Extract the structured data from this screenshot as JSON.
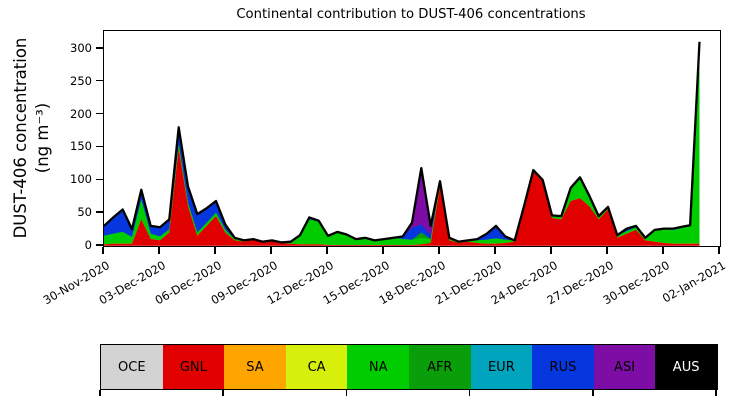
{
  "background": "#ffffff",
  "chart_data": {
    "type": "area",
    "stacked": true,
    "title": "Continental contribution to DUST-406 concentrations",
    "ylabel_line1": "DUST-406 concentration",
    "ylabel_line2": "(ng m⁻³)",
    "y_ticks": [
      0,
      50,
      100,
      150,
      200,
      250,
      300
    ],
    "y_axis_max": 327,
    "x_range_days": [
      0,
      33
    ],
    "x_tick_days": [
      0,
      3,
      6,
      9,
      12,
      15,
      18,
      21,
      24,
      27,
      30,
      33
    ],
    "x_tick_labels": [
      "30-Nov-2020",
      "03-Dec-2020",
      "06-Dec-2020",
      "09-Dec-2020",
      "12-Dec-2020",
      "15-Dec-2020",
      "18-Dec-2020",
      "21-Dec-2020",
      "24-Dec-2020",
      "27-Dec-2020",
      "30-Dec-2020",
      "02-Jan-2021"
    ],
    "grid": false,
    "outline_color": "#000000",
    "x_days": [
      0,
      0.5,
      1,
      1.5,
      2,
      2.5,
      3,
      3.5,
      4,
      4.5,
      5,
      5.5,
      6,
      6.5,
      7,
      7.5,
      8,
      8.5,
      9,
      9.5,
      10,
      10.5,
      11,
      11.5,
      12,
      12.5,
      13,
      13.5,
      14,
      14.5,
      15,
      15.5,
      16,
      16.5,
      17,
      17.5,
      18,
      18.5,
      19,
      19.5,
      20,
      20.5,
      21,
      21.5,
      22,
      22.5,
      23,
      23.5,
      24,
      24.5,
      25,
      25.5,
      26,
      26.5,
      27,
      27.5,
      28,
      28.5,
      29,
      29.5,
      30,
      30.5,
      31,
      31.4,
      31.9
    ],
    "series": [
      {
        "name": "OCE",
        "color": "#d3d3d3",
        "values": [
          0.5
        ]
      },
      {
        "name": "GNL",
        "color": "#e00000",
        "values": [
          2,
          3,
          3,
          3,
          40,
          10,
          8,
          20,
          148,
          60,
          15,
          30,
          45,
          20,
          8,
          6,
          9,
          5,
          7,
          4,
          3,
          2,
          2,
          2,
          1,
          1,
          1,
          1,
          1,
          1,
          1,
          1,
          1,
          1,
          2,
          4,
          90,
          8,
          4,
          6,
          4,
          3,
          3,
          4,
          6,
          58,
          112,
          98,
          42,
          40,
          68,
          72,
          60,
          40,
          55,
          12,
          18,
          24,
          8,
          6,
          4,
          3,
          3,
          3,
          3
        ]
      },
      {
        "name": "SA",
        "color": "#ffa500",
        "values": [
          0
        ]
      },
      {
        "name": "CA",
        "color": "#d6ef0b",
        "values": [
          0
        ]
      },
      {
        "name": "NA",
        "color": "#00cc00",
        "values": [
          13,
          15,
          18,
          10,
          30,
          8,
          6,
          5,
          6,
          5,
          5,
          5,
          5,
          4,
          2,
          1,
          1,
          1,
          1,
          1,
          3,
          14,
          38,
          34,
          14,
          20,
          16,
          9,
          11,
          7,
          9,
          11,
          9,
          8,
          10,
          6,
          4,
          3,
          2,
          2,
          4,
          6,
          8,
          5,
          2,
          2,
          2,
          2,
          2,
          3,
          20,
          32,
          14,
          5,
          4,
          4,
          4,
          4,
          4,
          18,
          22,
          20,
          24,
          26,
          295
        ]
      },
      {
        "name": "AFR",
        "color": "#0a9e0a",
        "values": [
          0,
          0,
          0,
          0,
          0,
          0,
          0,
          0,
          0,
          0,
          0,
          0,
          0,
          0,
          0,
          0,
          0,
          0,
          0,
          0,
          0,
          0,
          0,
          0,
          0,
          0,
          0,
          0,
          0,
          0,
          0,
          0,
          0,
          0,
          8,
          0,
          0,
          0,
          0,
          0,
          0,
          0,
          0,
          0,
          0,
          0,
          0,
          0,
          0,
          0,
          0,
          0,
          0,
          0,
          0,
          0,
          0,
          0,
          0,
          0,
          0,
          0,
          0,
          0,
          5
        ]
      },
      {
        "name": "EUR",
        "color": "#00a5bd",
        "values": [
          0,
          0,
          0,
          0,
          0,
          0,
          0,
          0,
          0,
          0,
          0,
          0,
          0,
          0,
          0,
          0,
          0,
          0,
          0,
          0,
          0,
          0,
          0,
          0,
          0,
          0,
          0,
          0,
          0,
          0,
          0,
          0,
          0,
          0,
          0,
          0,
          0,
          0,
          0,
          0,
          0,
          0,
          0,
          0,
          0,
          0,
          1,
          0,
          2,
          2,
          0,
          0,
          2,
          0,
          0,
          0,
          0,
          0,
          0,
          0,
          0,
          3,
          2,
          2,
          0
        ]
      },
      {
        "name": "RUS",
        "color": "#0636dd",
        "values": [
          15,
          25,
          34,
          12,
          15,
          12,
          14,
          12,
          24,
          25,
          28,
          22,
          18,
          8,
          2,
          1,
          0,
          0,
          0,
          0,
          0,
          0,
          3,
          2,
          0,
          0,
          0,
          0,
          0,
          0,
          0,
          0,
          4,
          18,
          12,
          6,
          4,
          1,
          0,
          0,
          2,
          9,
          19,
          5,
          0,
          0,
          0,
          0,
          0,
          0,
          0,
          0,
          0,
          0,
          0,
          0,
          4,
          2,
          0,
          0,
          0,
          0,
          0,
          0,
          4
        ]
      },
      {
        "name": "ASI",
        "color": "#7d0da5",
        "values": [
          0,
          0,
          0,
          0,
          0,
          0,
          0,
          3,
          2,
          0,
          0,
          0,
          0,
          0,
          0,
          0,
          0,
          0,
          0,
          0,
          0,
          0,
          0,
          0,
          0,
          0,
          0,
          0,
          0,
          0,
          0,
          0,
          0,
          8,
          86,
          14,
          0,
          0,
          0,
          0,
          0,
          0,
          0,
          0,
          0,
          0,
          0,
          0,
          0,
          0,
          0,
          0,
          0,
          0,
          0,
          0,
          0,
          0,
          0,
          0,
          0,
          0,
          0,
          0,
          3
        ]
      },
      {
        "name": "AUS",
        "color": "#000000",
        "values": [
          0
        ]
      }
    ]
  },
  "legend": {
    "items": [
      {
        "label": "OCE",
        "bg": "#d3d3d3",
        "fg": "#000000"
      },
      {
        "label": "GNL",
        "bg": "#e00000",
        "fg": "#000000"
      },
      {
        "label": "SA",
        "bg": "#ffa500",
        "fg": "#000000"
      },
      {
        "label": "CA",
        "bg": "#d6ef0b",
        "fg": "#000000"
      },
      {
        "label": "NA",
        "bg": "#00cc00",
        "fg": "#000000"
      },
      {
        "label": "AFR",
        "bg": "#0a9e0a",
        "fg": "#000000"
      },
      {
        "label": "EUR",
        "bg": "#00a5bd",
        "fg": "#000000"
      },
      {
        "label": "RUS",
        "bg": "#0636dd",
        "fg": "#000000"
      },
      {
        "label": "ASI",
        "bg": "#7d0da5",
        "fg": "#000000"
      },
      {
        "label": "AUS",
        "bg": "#000000",
        "fg": "#ffffff"
      }
    ]
  }
}
